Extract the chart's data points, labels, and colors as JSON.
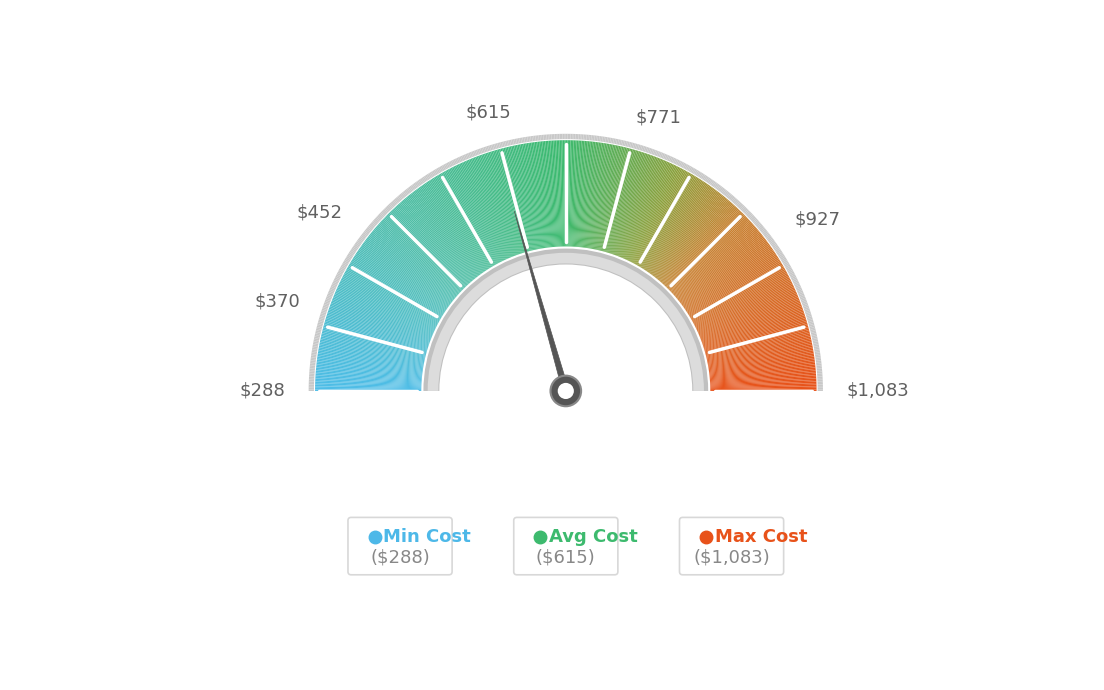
{
  "min_val": 288,
  "avg_val": 615,
  "max_val": 1083,
  "tick_labels": [
    "$288",
    "$370",
    "$452",
    "$615",
    "$771",
    "$927",
    "$1,083"
  ],
  "tick_values": [
    288,
    370,
    452,
    615,
    771,
    927,
    1083
  ],
  "legend": [
    {
      "label": "Min Cost",
      "value": "($288)",
      "color": "#4db8e8"
    },
    {
      "label": "Avg Cost",
      "value": "($615)",
      "color": "#3dba6e"
    },
    {
      "label": "Max Cost",
      "value": "($1,083)",
      "color": "#e8521a"
    }
  ],
  "color_stops": [
    [
      0.0,
      [
        78,
        189,
        232
      ]
    ],
    [
      0.25,
      [
        80,
        190,
        170
      ]
    ],
    [
      0.5,
      [
        61,
        186,
        110
      ]
    ],
    [
      0.65,
      [
        140,
        160,
        60
      ]
    ],
    [
      0.75,
      [
        200,
        130,
        50
      ]
    ],
    [
      1.0,
      [
        232,
        82,
        26
      ]
    ]
  ],
  "bg_color": "#ffffff",
  "needle_color": "#555555",
  "outer_arc_color": "#cccccc",
  "inner_ring_color": "#c8c8c8",
  "inner_ring_light": "#e8e8e8"
}
